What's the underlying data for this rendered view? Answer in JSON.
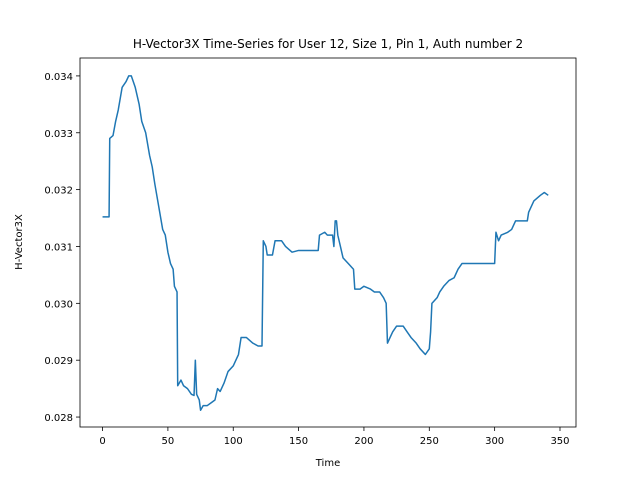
{
  "chart_data": {
    "type": "line",
    "title": "H-Vector3X Time-Series for User 12, Size 1, Pin 1, Auth number 2",
    "x_label": "Time",
    "y_label": "H-Vector3X",
    "x": [
      0,
      5,
      5.5,
      8,
      10,
      12,
      15,
      18,
      20,
      22,
      25,
      28,
      30,
      33,
      36,
      38,
      40,
      43,
      46,
      48,
      50,
      52,
      54,
      55,
      57,
      57.5,
      60,
      62,
      65,
      68,
      70,
      71,
      72,
      74,
      75,
      77,
      80,
      83,
      86,
      88,
      90,
      93,
      96,
      100,
      102,
      104,
      106,
      110,
      115,
      119,
      122,
      123,
      125,
      126,
      130,
      132,
      137,
      140,
      145,
      150,
      165,
      166,
      170,
      172,
      176,
      177,
      178,
      179,
      180,
      182,
      184,
      188,
      192,
      193,
      197,
      200,
      205,
      208,
      212,
      215,
      217,
      218,
      220,
      222,
      225,
      230,
      233,
      236,
      240,
      243,
      247,
      250,
      251,
      252,
      256,
      258,
      261,
      265,
      269,
      272,
      275,
      300,
      301,
      303,
      305,
      310,
      313,
      316,
      325,
      326,
      330,
      335,
      338,
      341
    ],
    "series": [
      {
        "name": "H-Vector3X",
        "color": "#1f77b4",
        "values": [
          0.03152,
          0.03152,
          0.0329,
          0.03295,
          0.0332,
          0.0334,
          0.0338,
          0.0339,
          0.034,
          0.034,
          0.0338,
          0.0335,
          0.0332,
          0.033,
          0.0326,
          0.0324,
          0.0321,
          0.0317,
          0.0313,
          0.0312,
          0.0309,
          0.0307,
          0.0306,
          0.0303,
          0.0302,
          0.02855,
          0.02865,
          0.02855,
          0.0285,
          0.0284,
          0.02838,
          0.029,
          0.0284,
          0.0283,
          0.02812,
          0.0282,
          0.0282,
          0.02825,
          0.0283,
          0.0285,
          0.02845,
          0.0286,
          0.0288,
          0.0289,
          0.029,
          0.0291,
          0.0294,
          0.0294,
          0.0293,
          0.02925,
          0.02925,
          0.0311,
          0.031,
          0.03085,
          0.03085,
          0.0311,
          0.0311,
          0.031,
          0.0309,
          0.03093,
          0.03093,
          0.0312,
          0.03125,
          0.0312,
          0.0312,
          0.031,
          0.03145,
          0.03145,
          0.0312,
          0.031,
          0.0308,
          0.0307,
          0.0306,
          0.03025,
          0.03025,
          0.0303,
          0.03025,
          0.0302,
          0.0302,
          0.0301,
          0.03,
          0.0293,
          0.0294,
          0.0295,
          0.0296,
          0.0296,
          0.0295,
          0.0294,
          0.0293,
          0.0292,
          0.0291,
          0.0292,
          0.0295,
          0.03,
          0.0301,
          0.0302,
          0.0303,
          0.0304,
          0.03045,
          0.0306,
          0.0307,
          0.0307,
          0.03125,
          0.0311,
          0.0312,
          0.03125,
          0.0313,
          0.03145,
          0.03145,
          0.0316,
          0.0318,
          0.0319,
          0.03195,
          0.0319
        ]
      }
    ],
    "xlim": [
      -17.25,
      362.25
    ],
    "xticks": [
      0,
      50,
      100,
      150,
      200,
      250,
      300,
      350
    ],
    "ylim": [
      0.027825,
      0.034315
    ],
    "yticks": [
      0.028,
      0.029,
      {
        "value": 0.03,
        "label": "0.030"
      },
      0.031,
      0.032,
      0.033,
      0.034
    ]
  }
}
